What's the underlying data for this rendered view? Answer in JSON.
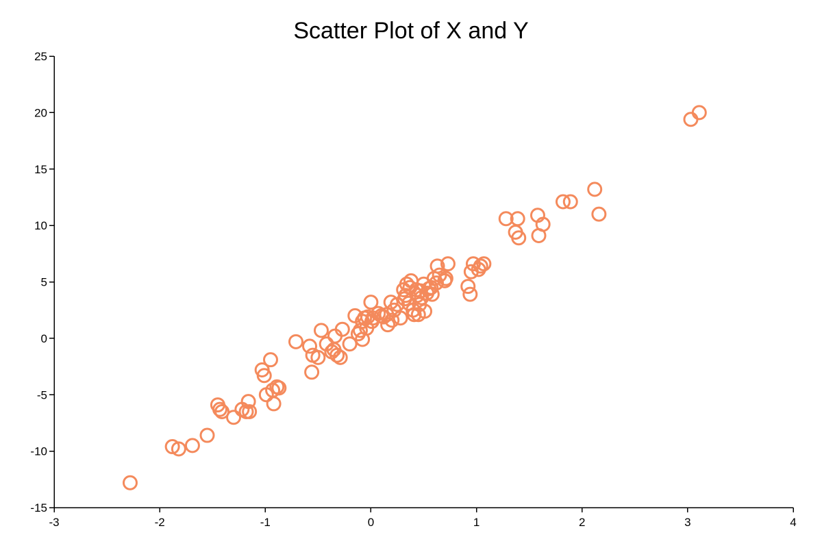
{
  "chart_data": {
    "type": "scatter",
    "title": "Scatter Plot of X and Y",
    "xlabel": "",
    "ylabel": "",
    "xlim": [
      -3,
      4
    ],
    "ylim": [
      -15,
      25
    ],
    "x_ticks": [
      -3,
      -2,
      -1,
      0,
      1,
      2,
      3,
      4
    ],
    "y_ticks": [
      -15,
      -10,
      -5,
      0,
      5,
      10,
      15,
      20,
      25
    ],
    "grid": false,
    "legend": "none",
    "marker": "hollow-circle",
    "color": "#f48a5c",
    "series": [
      {
        "x": [
          -2.28,
          -1.88,
          -1.82,
          -1.69,
          -1.55,
          -1.45,
          -1.43,
          -1.41,
          -1.3,
          -1.22,
          -1.18,
          -1.16,
          -1.15,
          -1.03,
          -1.01,
          -0.99,
          -0.95,
          -0.93,
          -0.92,
          -0.89,
          -0.87,
          -0.71,
          -0.58,
          -0.56,
          -0.55,
          -0.5,
          -0.47,
          -0.42,
          -0.37,
          -0.35,
          -0.34,
          -0.32,
          -0.29,
          -0.27,
          -0.2,
          -0.15,
          -0.12,
          -0.1,
          -0.08,
          -0.08,
          -0.06,
          -0.04,
          -0.03,
          0.0,
          0.01,
          0.02,
          0.07,
          0.1,
          0.12,
          0.15,
          0.16,
          0.19,
          0.2,
          0.22,
          0.25,
          0.28,
          0.31,
          0.32,
          0.33,
          0.34,
          0.36,
          0.37,
          0.38,
          0.4,
          0.41,
          0.43,
          0.44,
          0.45,
          0.46,
          0.47,
          0.48,
          0.5,
          0.51,
          0.53,
          0.55,
          0.57,
          0.58,
          0.6,
          0.62,
          0.63,
          0.65,
          0.7,
          0.71,
          0.73,
          0.92,
          0.94,
          0.95,
          0.97,
          1.02,
          1.04,
          1.07,
          1.28,
          1.37,
          1.39,
          1.4,
          1.58,
          1.59,
          1.63,
          1.82,
          1.89,
          2.12,
          2.16,
          3.03,
          3.11
        ],
        "y": [
          -12.8,
          -9.6,
          -9.8,
          -9.5,
          -8.6,
          -5.9,
          -6.3,
          -6.5,
          -7.0,
          -6.3,
          -6.5,
          -5.6,
          -6.5,
          -2.8,
          -3.3,
          -5.0,
          -1.9,
          -4.6,
          -5.8,
          -4.3,
          -4.4,
          -0.3,
          -0.7,
          -3.0,
          -1.5,
          -1.7,
          0.7,
          -0.5,
          -1.2,
          -1.0,
          0.2,
          -1.5,
          -1.7,
          0.8,
          -0.5,
          2.0,
          0.4,
          0.7,
          1.5,
          -0.1,
          1.8,
          0.9,
          1.9,
          3.2,
          1.5,
          1.8,
          2.2,
          2.0,
          1.9,
          2.1,
          1.2,
          3.2,
          1.6,
          2.5,
          3.0,
          1.8,
          4.3,
          3.5,
          3.8,
          4.8,
          3.1,
          4.5,
          5.1,
          2.5,
          2.1,
          4.3,
          3.8,
          2.1,
          3.0,
          4.2,
          3.6,
          4.8,
          2.4,
          4.0,
          4.4,
          4.5,
          3.9,
          5.3,
          4.9,
          6.4,
          5.6,
          5.1,
          5.3,
          6.6,
          4.6,
          3.9,
          5.9,
          6.6,
          6.1,
          6.4,
          6.6,
          10.6,
          9.4,
          10.6,
          8.9,
          10.9,
          9.1,
          10.1,
          12.1,
          12.1,
          13.2,
          11.0,
          19.4,
          20.0
        ]
      }
    ]
  }
}
